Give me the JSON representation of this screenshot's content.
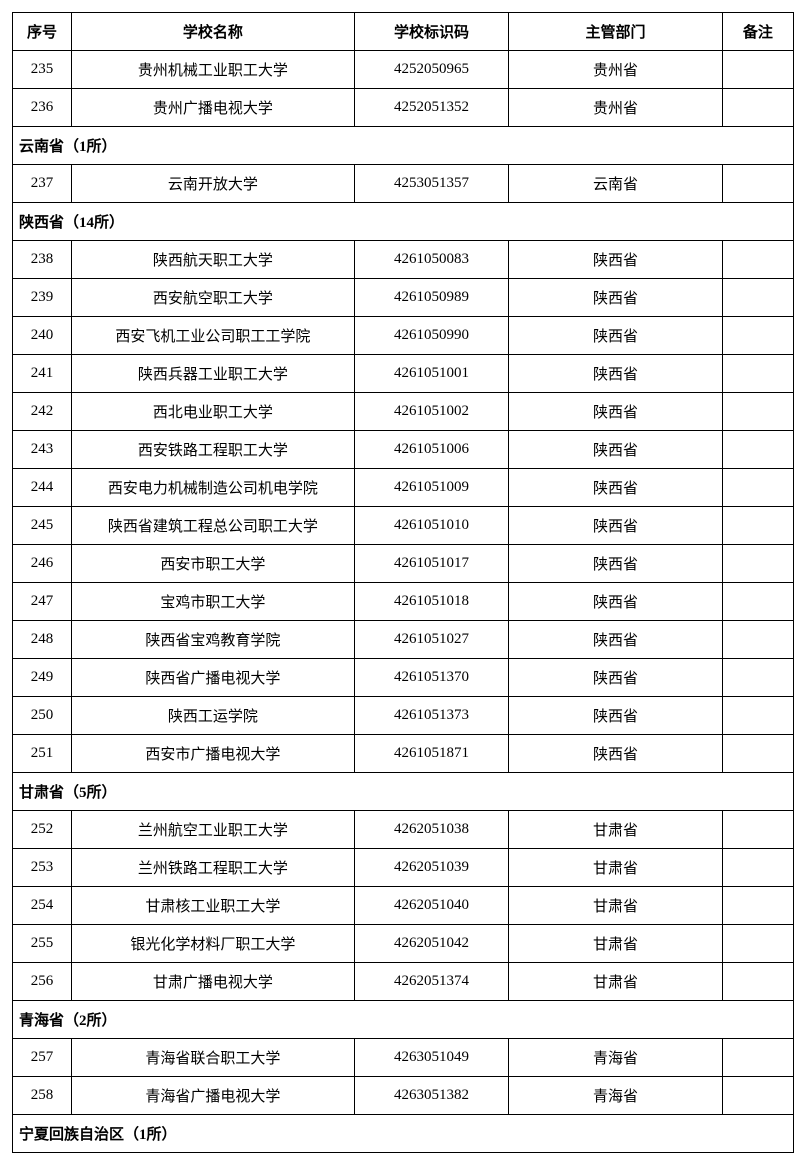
{
  "headers": {
    "seq": "序号",
    "name": "学校名称",
    "code": "学校标识码",
    "dept": "主管部门",
    "note": "备注"
  },
  "rows": [
    {
      "type": "data",
      "seq": "235",
      "name": "贵州机械工业职工大学",
      "code": "4252050965",
      "dept": "贵州省",
      "note": ""
    },
    {
      "type": "data",
      "seq": "236",
      "name": "贵州广播电视大学",
      "code": "4252051352",
      "dept": "贵州省",
      "note": ""
    },
    {
      "type": "section",
      "label": "云南省（1所）"
    },
    {
      "type": "data",
      "seq": "237",
      "name": "云南开放大学",
      "code": "4253051357",
      "dept": "云南省",
      "note": ""
    },
    {
      "type": "section",
      "label": "陕西省（14所）"
    },
    {
      "type": "data",
      "seq": "238",
      "name": "陕西航天职工大学",
      "code": "4261050083",
      "dept": "陕西省",
      "note": ""
    },
    {
      "type": "data",
      "seq": "239",
      "name": "西安航空职工大学",
      "code": "4261050989",
      "dept": "陕西省",
      "note": ""
    },
    {
      "type": "data",
      "seq": "240",
      "name": "西安飞机工业公司职工工学院",
      "code": "4261050990",
      "dept": "陕西省",
      "note": ""
    },
    {
      "type": "data",
      "seq": "241",
      "name": "陕西兵器工业职工大学",
      "code": "4261051001",
      "dept": "陕西省",
      "note": ""
    },
    {
      "type": "data",
      "seq": "242",
      "name": "西北电业职工大学",
      "code": "4261051002",
      "dept": "陕西省",
      "note": ""
    },
    {
      "type": "data",
      "seq": "243",
      "name": "西安铁路工程职工大学",
      "code": "4261051006",
      "dept": "陕西省",
      "note": ""
    },
    {
      "type": "data",
      "seq": "244",
      "name": "西安电力机械制造公司机电学院",
      "code": "4261051009",
      "dept": "陕西省",
      "note": ""
    },
    {
      "type": "data",
      "seq": "245",
      "name": "陕西省建筑工程总公司职工大学",
      "code": "4261051010",
      "dept": "陕西省",
      "note": ""
    },
    {
      "type": "data",
      "seq": "246",
      "name": "西安市职工大学",
      "code": "4261051017",
      "dept": "陕西省",
      "note": ""
    },
    {
      "type": "data",
      "seq": "247",
      "name": "宝鸡市职工大学",
      "code": "4261051018",
      "dept": "陕西省",
      "note": ""
    },
    {
      "type": "data",
      "seq": "248",
      "name": "陕西省宝鸡教育学院",
      "code": "4261051027",
      "dept": "陕西省",
      "note": ""
    },
    {
      "type": "data",
      "seq": "249",
      "name": "陕西省广播电视大学",
      "code": "4261051370",
      "dept": "陕西省",
      "note": ""
    },
    {
      "type": "data",
      "seq": "250",
      "name": "陕西工运学院",
      "code": "4261051373",
      "dept": "陕西省",
      "note": ""
    },
    {
      "type": "data",
      "seq": "251",
      "name": "西安市广播电视大学",
      "code": "4261051871",
      "dept": "陕西省",
      "note": ""
    },
    {
      "type": "section",
      "label": "甘肃省（5所）"
    },
    {
      "type": "data",
      "seq": "252",
      "name": "兰州航空工业职工大学",
      "code": "4262051038",
      "dept": "甘肃省",
      "note": ""
    },
    {
      "type": "data",
      "seq": "253",
      "name": "兰州铁路工程职工大学",
      "code": "4262051039",
      "dept": "甘肃省",
      "note": ""
    },
    {
      "type": "data",
      "seq": "254",
      "name": "甘肃核工业职工大学",
      "code": "4262051040",
      "dept": "甘肃省",
      "note": ""
    },
    {
      "type": "data",
      "seq": "255",
      "name": "银光化学材料厂职工大学",
      "code": "4262051042",
      "dept": "甘肃省",
      "note": ""
    },
    {
      "type": "data",
      "seq": "256",
      "name": "甘肃广播电视大学",
      "code": "4262051374",
      "dept": "甘肃省",
      "note": ""
    },
    {
      "type": "section",
      "label": "青海省（2所）"
    },
    {
      "type": "data",
      "seq": "257",
      "name": "青海省联合职工大学",
      "code": "4263051049",
      "dept": "青海省",
      "note": ""
    },
    {
      "type": "data",
      "seq": "258",
      "name": "青海省广播电视大学",
      "code": "4263051382",
      "dept": "青海省",
      "note": ""
    },
    {
      "type": "section",
      "label": "宁夏回族自治区（1所）"
    }
  ]
}
